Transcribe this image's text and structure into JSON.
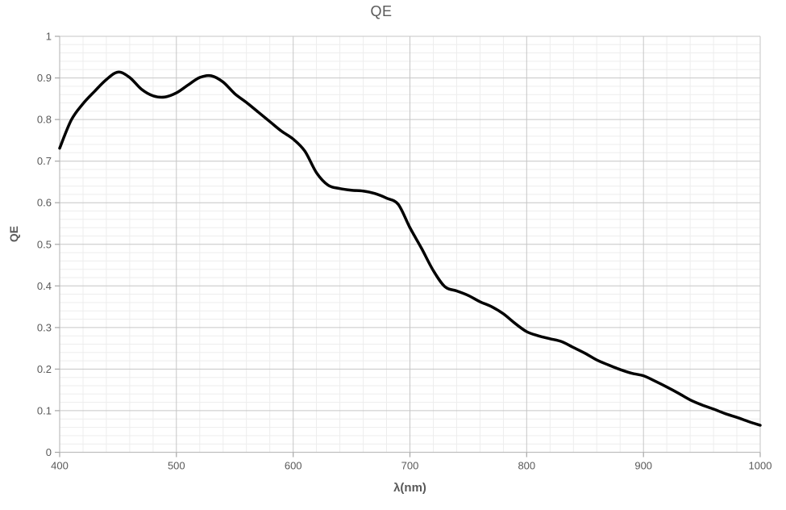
{
  "chart_data": {
    "type": "line",
    "title": "QE",
    "xlabel": "λ(nm)",
    "ylabel": "QE",
    "xlim": [
      400,
      1000
    ],
    "ylim": [
      0,
      1
    ],
    "x_tick_values": [
      400,
      500,
      600,
      700,
      800,
      900,
      1000
    ],
    "x_tick_labels": [
      "400",
      "500",
      "600",
      "700",
      "800",
      "900",
      "1000"
    ],
    "y_tick_values": [
      0,
      0.1,
      0.2,
      0.3,
      0.4,
      0.5,
      0.6,
      0.7,
      0.8,
      0.9,
      1
    ],
    "y_tick_labels": [
      "0",
      "0.1",
      "0.2",
      "0.3",
      "0.4",
      "0.5",
      "0.6",
      "0.7",
      "0.8",
      "0.9",
      "1"
    ],
    "x_minor_step": 20,
    "y_minor_step": 0.02,
    "grid": {
      "major": true,
      "minor": true
    },
    "legend": "none",
    "series": [
      {
        "name": "QE",
        "color": "#000000",
        "x": [
          400,
          410,
          420,
          430,
          440,
          450,
          460,
          470,
          480,
          490,
          500,
          510,
          520,
          530,
          540,
          550,
          560,
          570,
          580,
          590,
          600,
          610,
          620,
          630,
          640,
          650,
          660,
          670,
          680,
          690,
          700,
          710,
          720,
          730,
          740,
          750,
          760,
          770,
          780,
          790,
          800,
          810,
          820,
          830,
          840,
          850,
          860,
          870,
          880,
          890,
          900,
          910,
          920,
          930,
          940,
          950,
          960,
          970,
          980,
          990,
          1000
        ],
        "y": [
          0.731,
          0.799,
          0.838,
          0.868,
          0.896,
          0.914,
          0.901,
          0.873,
          0.857,
          0.854,
          0.864,
          0.883,
          0.901,
          0.905,
          0.89,
          0.862,
          0.841,
          0.818,
          0.795,
          0.772,
          0.753,
          0.724,
          0.672,
          0.642,
          0.634,
          0.63,
          0.628,
          0.622,
          0.611,
          0.596,
          0.54,
          0.49,
          0.437,
          0.398,
          0.388,
          0.377,
          0.362,
          0.35,
          0.333,
          0.31,
          0.29,
          0.28,
          0.273,
          0.266,
          0.252,
          0.238,
          0.222,
          0.21,
          0.199,
          0.19,
          0.184,
          0.171,
          0.157,
          0.142,
          0.126,
          0.114,
          0.104,
          0.093,
          0.084,
          0.074,
          0.065
        ]
      }
    ]
  },
  "colors": {
    "background": "#ffffff",
    "line": "#000000",
    "major_grid": "#c6c6c6",
    "minor_grid": "#ededed",
    "axis": "#bfbfbf",
    "tick": "#a6a6a6",
    "text": "#595959"
  }
}
